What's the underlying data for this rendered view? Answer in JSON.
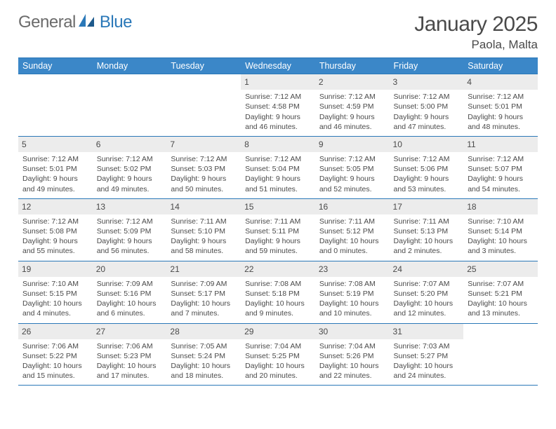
{
  "logo": {
    "word1": "General",
    "word2": "Blue"
  },
  "title": "January 2025",
  "location": "Paola, Malta",
  "weekdays": [
    "Sunday",
    "Monday",
    "Tuesday",
    "Wednesday",
    "Thursday",
    "Friday",
    "Saturday"
  ],
  "colors": {
    "header_bg": "#3b87c8",
    "header_text": "#ffffff",
    "border": "#2a78b8",
    "daynum_bg": "#ececec",
    "body_text": "#4a4a4a",
    "logo_gray": "#6b6b6b",
    "logo_blue": "#2a78b8",
    "page_bg": "#ffffff"
  },
  "typography": {
    "title_fontsize": 30,
    "location_fontsize": 17,
    "th_fontsize": 12.5,
    "cell_fontsize": 10.5,
    "daynum_fontsize": 12
  },
  "layout": {
    "columns": 7,
    "rows": 5,
    "leading_blanks": 3
  },
  "days": [
    {
      "d": "1",
      "sunrise": "Sunrise: 7:12 AM",
      "sunset": "Sunset: 4:58 PM",
      "daylight1": "Daylight: 9 hours",
      "daylight2": "and 46 minutes."
    },
    {
      "d": "2",
      "sunrise": "Sunrise: 7:12 AM",
      "sunset": "Sunset: 4:59 PM",
      "daylight1": "Daylight: 9 hours",
      "daylight2": "and 46 minutes."
    },
    {
      "d": "3",
      "sunrise": "Sunrise: 7:12 AM",
      "sunset": "Sunset: 5:00 PM",
      "daylight1": "Daylight: 9 hours",
      "daylight2": "and 47 minutes."
    },
    {
      "d": "4",
      "sunrise": "Sunrise: 7:12 AM",
      "sunset": "Sunset: 5:01 PM",
      "daylight1": "Daylight: 9 hours",
      "daylight2": "and 48 minutes."
    },
    {
      "d": "5",
      "sunrise": "Sunrise: 7:12 AM",
      "sunset": "Sunset: 5:01 PM",
      "daylight1": "Daylight: 9 hours",
      "daylight2": "and 49 minutes."
    },
    {
      "d": "6",
      "sunrise": "Sunrise: 7:12 AM",
      "sunset": "Sunset: 5:02 PM",
      "daylight1": "Daylight: 9 hours",
      "daylight2": "and 49 minutes."
    },
    {
      "d": "7",
      "sunrise": "Sunrise: 7:12 AM",
      "sunset": "Sunset: 5:03 PM",
      "daylight1": "Daylight: 9 hours",
      "daylight2": "and 50 minutes."
    },
    {
      "d": "8",
      "sunrise": "Sunrise: 7:12 AM",
      "sunset": "Sunset: 5:04 PM",
      "daylight1": "Daylight: 9 hours",
      "daylight2": "and 51 minutes."
    },
    {
      "d": "9",
      "sunrise": "Sunrise: 7:12 AM",
      "sunset": "Sunset: 5:05 PM",
      "daylight1": "Daylight: 9 hours",
      "daylight2": "and 52 minutes."
    },
    {
      "d": "10",
      "sunrise": "Sunrise: 7:12 AM",
      "sunset": "Sunset: 5:06 PM",
      "daylight1": "Daylight: 9 hours",
      "daylight2": "and 53 minutes."
    },
    {
      "d": "11",
      "sunrise": "Sunrise: 7:12 AM",
      "sunset": "Sunset: 5:07 PM",
      "daylight1": "Daylight: 9 hours",
      "daylight2": "and 54 minutes."
    },
    {
      "d": "12",
      "sunrise": "Sunrise: 7:12 AM",
      "sunset": "Sunset: 5:08 PM",
      "daylight1": "Daylight: 9 hours",
      "daylight2": "and 55 minutes."
    },
    {
      "d": "13",
      "sunrise": "Sunrise: 7:12 AM",
      "sunset": "Sunset: 5:09 PM",
      "daylight1": "Daylight: 9 hours",
      "daylight2": "and 56 minutes."
    },
    {
      "d": "14",
      "sunrise": "Sunrise: 7:11 AM",
      "sunset": "Sunset: 5:10 PM",
      "daylight1": "Daylight: 9 hours",
      "daylight2": "and 58 minutes."
    },
    {
      "d": "15",
      "sunrise": "Sunrise: 7:11 AM",
      "sunset": "Sunset: 5:11 PM",
      "daylight1": "Daylight: 9 hours",
      "daylight2": "and 59 minutes."
    },
    {
      "d": "16",
      "sunrise": "Sunrise: 7:11 AM",
      "sunset": "Sunset: 5:12 PM",
      "daylight1": "Daylight: 10 hours",
      "daylight2": "and 0 minutes."
    },
    {
      "d": "17",
      "sunrise": "Sunrise: 7:11 AM",
      "sunset": "Sunset: 5:13 PM",
      "daylight1": "Daylight: 10 hours",
      "daylight2": "and 2 minutes."
    },
    {
      "d": "18",
      "sunrise": "Sunrise: 7:10 AM",
      "sunset": "Sunset: 5:14 PM",
      "daylight1": "Daylight: 10 hours",
      "daylight2": "and 3 minutes."
    },
    {
      "d": "19",
      "sunrise": "Sunrise: 7:10 AM",
      "sunset": "Sunset: 5:15 PM",
      "daylight1": "Daylight: 10 hours",
      "daylight2": "and 4 minutes."
    },
    {
      "d": "20",
      "sunrise": "Sunrise: 7:09 AM",
      "sunset": "Sunset: 5:16 PM",
      "daylight1": "Daylight: 10 hours",
      "daylight2": "and 6 minutes."
    },
    {
      "d": "21",
      "sunrise": "Sunrise: 7:09 AM",
      "sunset": "Sunset: 5:17 PM",
      "daylight1": "Daylight: 10 hours",
      "daylight2": "and 7 minutes."
    },
    {
      "d": "22",
      "sunrise": "Sunrise: 7:08 AM",
      "sunset": "Sunset: 5:18 PM",
      "daylight1": "Daylight: 10 hours",
      "daylight2": "and 9 minutes."
    },
    {
      "d": "23",
      "sunrise": "Sunrise: 7:08 AM",
      "sunset": "Sunset: 5:19 PM",
      "daylight1": "Daylight: 10 hours",
      "daylight2": "and 10 minutes."
    },
    {
      "d": "24",
      "sunrise": "Sunrise: 7:07 AM",
      "sunset": "Sunset: 5:20 PM",
      "daylight1": "Daylight: 10 hours",
      "daylight2": "and 12 minutes."
    },
    {
      "d": "25",
      "sunrise": "Sunrise: 7:07 AM",
      "sunset": "Sunset: 5:21 PM",
      "daylight1": "Daylight: 10 hours",
      "daylight2": "and 13 minutes."
    },
    {
      "d": "26",
      "sunrise": "Sunrise: 7:06 AM",
      "sunset": "Sunset: 5:22 PM",
      "daylight1": "Daylight: 10 hours",
      "daylight2": "and 15 minutes."
    },
    {
      "d": "27",
      "sunrise": "Sunrise: 7:06 AM",
      "sunset": "Sunset: 5:23 PM",
      "daylight1": "Daylight: 10 hours",
      "daylight2": "and 17 minutes."
    },
    {
      "d": "28",
      "sunrise": "Sunrise: 7:05 AM",
      "sunset": "Sunset: 5:24 PM",
      "daylight1": "Daylight: 10 hours",
      "daylight2": "and 18 minutes."
    },
    {
      "d": "29",
      "sunrise": "Sunrise: 7:04 AM",
      "sunset": "Sunset: 5:25 PM",
      "daylight1": "Daylight: 10 hours",
      "daylight2": "and 20 minutes."
    },
    {
      "d": "30",
      "sunrise": "Sunrise: 7:04 AM",
      "sunset": "Sunset: 5:26 PM",
      "daylight1": "Daylight: 10 hours",
      "daylight2": "and 22 minutes."
    },
    {
      "d": "31",
      "sunrise": "Sunrise: 7:03 AM",
      "sunset": "Sunset: 5:27 PM",
      "daylight1": "Daylight: 10 hours",
      "daylight2": "and 24 minutes."
    }
  ]
}
